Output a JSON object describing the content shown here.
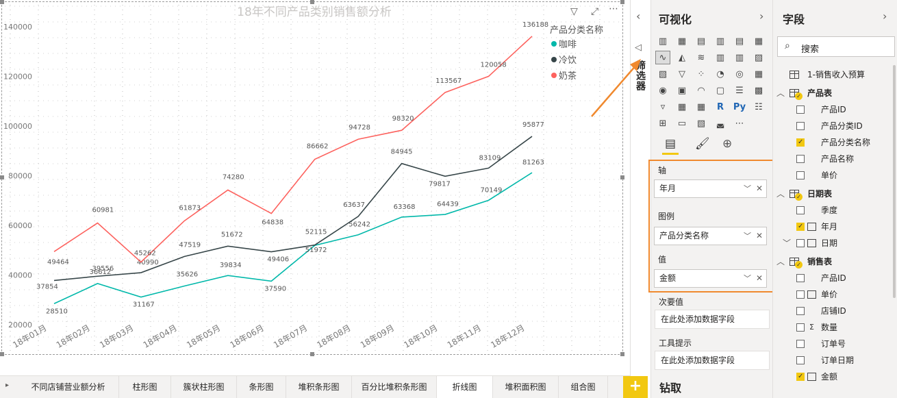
{
  "chart_data": {
    "type": "line",
    "title": "18年不同产品类别销售额分析",
    "categories": [
      "18年01月",
      "18年02月",
      "18年03月",
      "18年04月",
      "18年05月",
      "18年06月",
      "18年07月",
      "18年08月",
      "18年09月",
      "18年10月",
      "18年11月",
      "18年12月"
    ],
    "series": [
      {
        "name": "咖啡",
        "color": "#01b8aa",
        "values": [
          28510,
          36612,
          31167,
          35626,
          39834,
          37590,
          51972,
          56242,
          63368,
          64439,
          70149,
          81263
        ]
      },
      {
        "name": "冷饮",
        "color": "#374649",
        "values": [
          37854,
          39556,
          40990,
          47519,
          51672,
          49406,
          52115,
          63637,
          84945,
          79817,
          83109,
          95877
        ]
      },
      {
        "name": "奶茶",
        "color": "#fd625e",
        "values": [
          49464,
          60981,
          45262,
          61873,
          74280,
          64838,
          86662,
          94728,
          98320,
          113567,
          120058,
          136188
        ]
      }
    ],
    "y_ticks": [
      20000,
      40000,
      60000,
      80000,
      100000,
      120000,
      140000
    ],
    "ylim": [
      17000,
      145000
    ],
    "legend": {
      "title": "产品分类名称",
      "position": "top-right"
    },
    "grid": "dotted"
  },
  "header_icons": [
    "filter-icon",
    "focus-mode-icon",
    "more-options-icon"
  ],
  "filter_pane": {
    "label": "筛选器"
  },
  "viz_pane": {
    "title": "可视化",
    "wells": {
      "axis_label": "轴",
      "axis_field": "年月",
      "legend_label": "图例",
      "legend_field": "产品分类名称",
      "values_label": "值",
      "values_field": "金额",
      "secondary_label": "次要值",
      "secondary_placeholder": "在此处添加数据字段",
      "tooltip_label": "工具提示",
      "tooltip_placeholder": "在此处添加数据字段"
    },
    "drill_label": "钻取"
  },
  "fields_pane": {
    "title": "字段",
    "search_placeholder": "搜索",
    "tables": [
      {
        "name": "1-销售收入预算",
        "expanded": false,
        "checked": false,
        "fields": []
      },
      {
        "name": "产品表",
        "expanded": true,
        "checked": true,
        "fields": [
          {
            "name": "产品ID",
            "checked": false,
            "type": ""
          },
          {
            "name": "产品分类ID",
            "checked": false,
            "type": ""
          },
          {
            "name": "产品分类名称",
            "checked": true,
            "type": ""
          },
          {
            "name": "产品名称",
            "checked": false,
            "type": ""
          },
          {
            "name": "单价",
            "checked": false,
            "type": ""
          }
        ]
      },
      {
        "name": "日期表",
        "expanded": true,
        "checked": true,
        "fields": [
          {
            "name": "季度",
            "checked": false,
            "type": ""
          },
          {
            "name": "年月",
            "checked": true,
            "type": "calendar"
          },
          {
            "name": "日期",
            "checked": false,
            "type": "calendar",
            "expandable": true
          }
        ]
      },
      {
        "name": "销售表",
        "expanded": true,
        "checked": true,
        "fields": [
          {
            "name": "产品ID",
            "checked": false,
            "type": ""
          },
          {
            "name": "单价",
            "checked": false,
            "type": "calendar"
          },
          {
            "name": "店铺ID",
            "checked": false,
            "type": ""
          },
          {
            "name": "数量",
            "checked": false,
            "type": "sigma"
          },
          {
            "name": "订单号",
            "checked": false,
            "type": ""
          },
          {
            "name": "订单日期",
            "checked": false,
            "type": ""
          },
          {
            "name": "金额",
            "checked": true,
            "type": "calendar"
          }
        ]
      }
    ]
  },
  "page_tabs": [
    "不同店铺营业额分析",
    "柱形图",
    "簇状柱形图",
    "条形图",
    "堆积条形图",
    "百分比堆积条形图",
    "折线图",
    "堆积面积图",
    "组合图"
  ],
  "active_tab": "折线图",
  "add_page_label": "+"
}
